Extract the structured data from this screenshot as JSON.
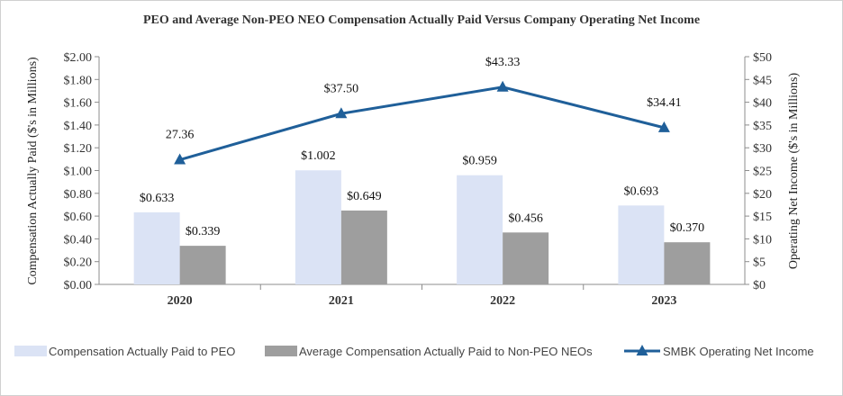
{
  "chart_data": {
    "type": "bar",
    "title": "PEO and Average Non-PEO NEO Compensation Actually Paid Versus Company Operating Net Income",
    "categories": [
      "2020",
      "2021",
      "2022",
      "2023"
    ],
    "ylabel": "Compensation Actually Paid ($'s in Millions)",
    "y2label": "Operating Net Income ($'s in Millions)",
    "ylim": [
      0,
      2.0
    ],
    "y2lim": [
      0,
      50
    ],
    "yticks": [
      "$0.00",
      "$0.20",
      "$0.40",
      "$0.60",
      "$0.80",
      "$1.00",
      "$1.20",
      "$1.40",
      "$1.60",
      "$1.80",
      "$2.00"
    ],
    "y2ticks": [
      "$0",
      "$5",
      "$10",
      "$15",
      "$20",
      "$25",
      "$30",
      "$35",
      "$40",
      "$45",
      "$50"
    ],
    "legend_position": "bottom",
    "series": [
      {
        "name": "Compensation Actually Paid to PEO",
        "type": "bar",
        "axis": "left",
        "color": "#dbe3f5",
        "values": [
          0.633,
          1.002,
          0.959,
          0.693
        ],
        "labels": [
          "$0.633",
          "$1.002",
          "$0.959",
          "$0.693"
        ]
      },
      {
        "name": "Average Compensation Actually Paid to Non-PEO NEOs",
        "type": "bar",
        "axis": "left",
        "color": "#9e9e9e",
        "values": [
          0.339,
          0.649,
          0.456,
          0.37
        ],
        "labels": [
          "$0.339",
          "$0.649",
          "$0.456",
          "$0.370"
        ]
      },
      {
        "name": "SMBK Operating Net Income",
        "type": "line",
        "axis": "right",
        "color": "#1f5f99",
        "values": [
          27.36,
          37.5,
          43.33,
          34.41
        ],
        "labels": [
          "27.36",
          "$37.50",
          "$43.33",
          "$34.41"
        ]
      }
    ]
  }
}
